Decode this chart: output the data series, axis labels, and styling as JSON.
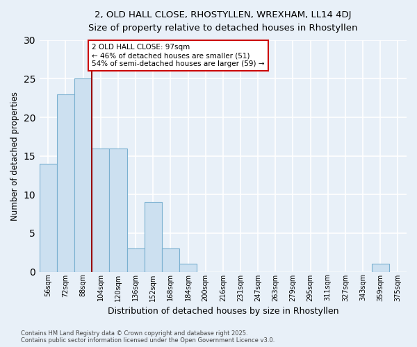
{
  "title1": "2, OLD HALL CLOSE, RHOSTYLLEN, WREXHAM, LL14 4DJ",
  "title2": "Size of property relative to detached houses in Rhostyllen",
  "xlabel": "Distribution of detached houses by size in Rhostyllen",
  "ylabel": "Number of detached properties",
  "categories": [
    "56sqm",
    "72sqm",
    "88sqm",
    "104sqm",
    "120sqm",
    "136sqm",
    "152sqm",
    "168sqm",
    "184sqm",
    "200sqm",
    "216sqm",
    "231sqm",
    "247sqm",
    "263sqm",
    "279sqm",
    "295sqm",
    "311sqm",
    "327sqm",
    "343sqm",
    "359sqm",
    "375sqm"
  ],
  "values": [
    14,
    23,
    25,
    16,
    16,
    3,
    9,
    3,
    1,
    0,
    0,
    0,
    0,
    0,
    0,
    0,
    0,
    0,
    0,
    1,
    0
  ],
  "bar_color": "#cce0f0",
  "bar_edge_color": "#7ab0d0",
  "background_color": "#e8f0f8",
  "grid_color": "#ffffff",
  "vline_color": "#990000",
  "annotation_text": "2 OLD HALL CLOSE: 97sqm\n← 46% of detached houses are smaller (51)\n54% of semi-detached houses are larger (59) →",
  "annotation_box_color": "#ffffff",
  "annotation_box_edge": "#cc0000",
  "ylim": [
    0,
    30
  ],
  "yticks": [
    0,
    5,
    10,
    15,
    20,
    25,
    30
  ],
  "footer": "Contains HM Land Registry data © Crown copyright and database right 2025.\nContains public sector information licensed under the Open Government Licence v3.0."
}
